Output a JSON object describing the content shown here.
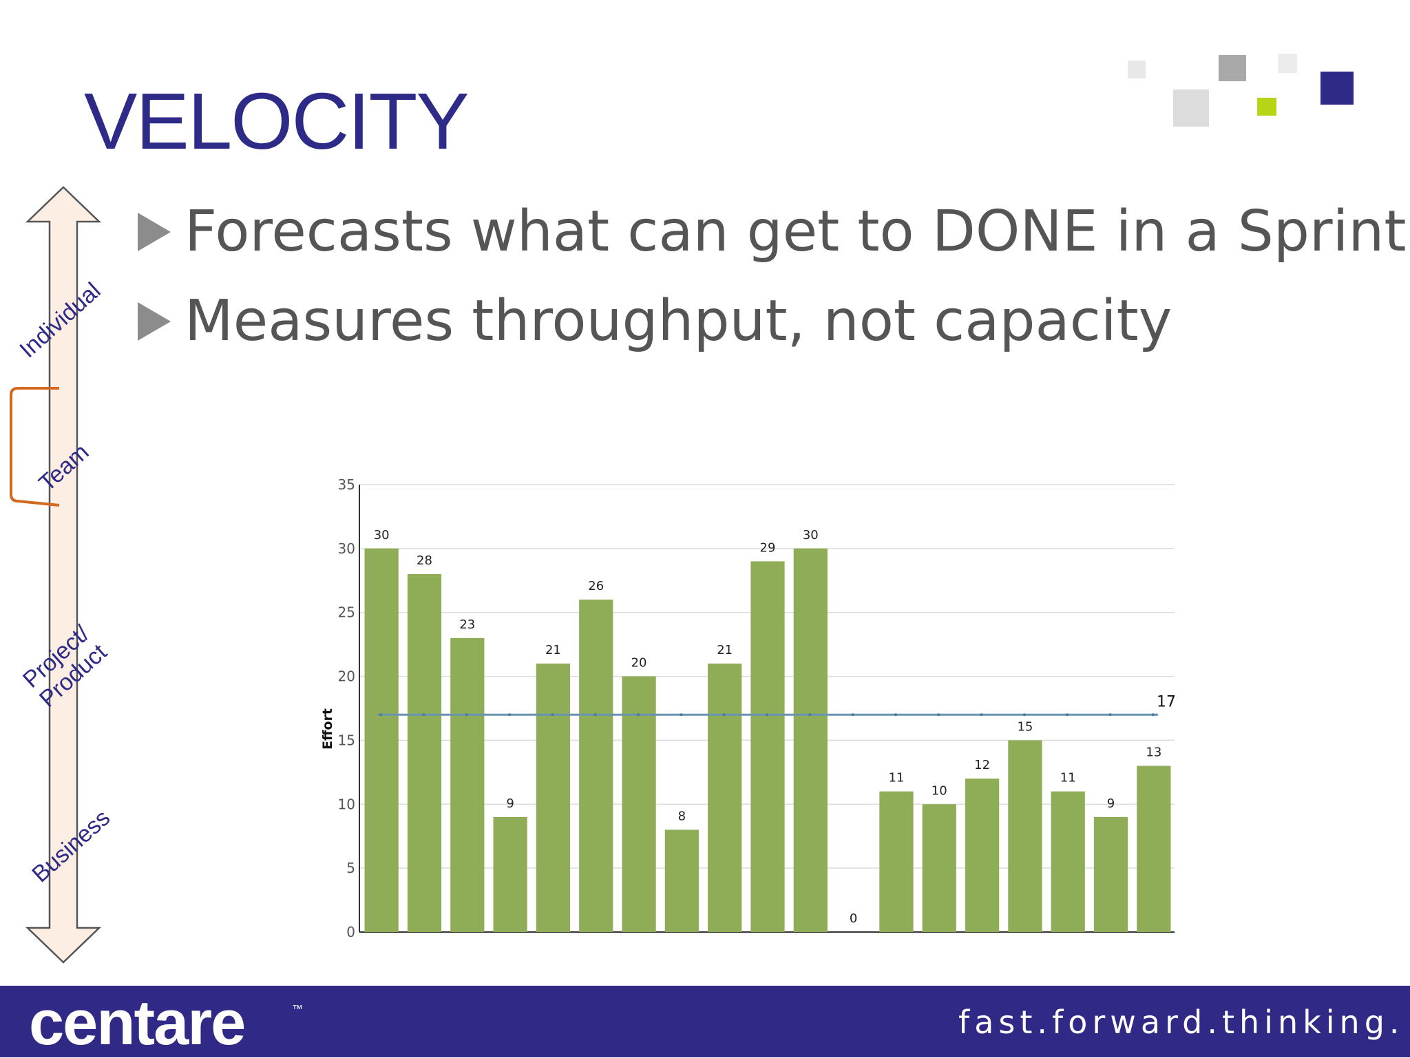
{
  "slide": {
    "title": "VELOCITY",
    "bullets": [
      "Forecasts what can get to DONE in a Sprint",
      "Measures throughput, not capacity"
    ],
    "scale_labels": [
      "Individual",
      "Team",
      "Project/\nProduct",
      "Business"
    ],
    "footer": {
      "logo": "centare",
      "logo_mark": "™",
      "tagline": "fast.forward.thinking."
    },
    "colors": {
      "title": "#2e2a87",
      "bar": "#8fad56",
      "average_line": "#6a93b0",
      "footer": "#302a86",
      "team_bracket": "#d2691e"
    }
  },
  "chart_data": {
    "type": "bar",
    "ylabel": "Effort",
    "xlabel": "",
    "ylim": [
      0,
      35
    ],
    "yticks": [
      0,
      5,
      10,
      15,
      20,
      25,
      30,
      35
    ],
    "values": [
      30,
      28,
      23,
      9,
      21,
      26,
      20,
      8,
      21,
      29,
      30,
      0,
      11,
      10,
      12,
      15,
      11,
      9,
      13
    ],
    "average": 17,
    "average_label": "17",
    "grid": true
  }
}
